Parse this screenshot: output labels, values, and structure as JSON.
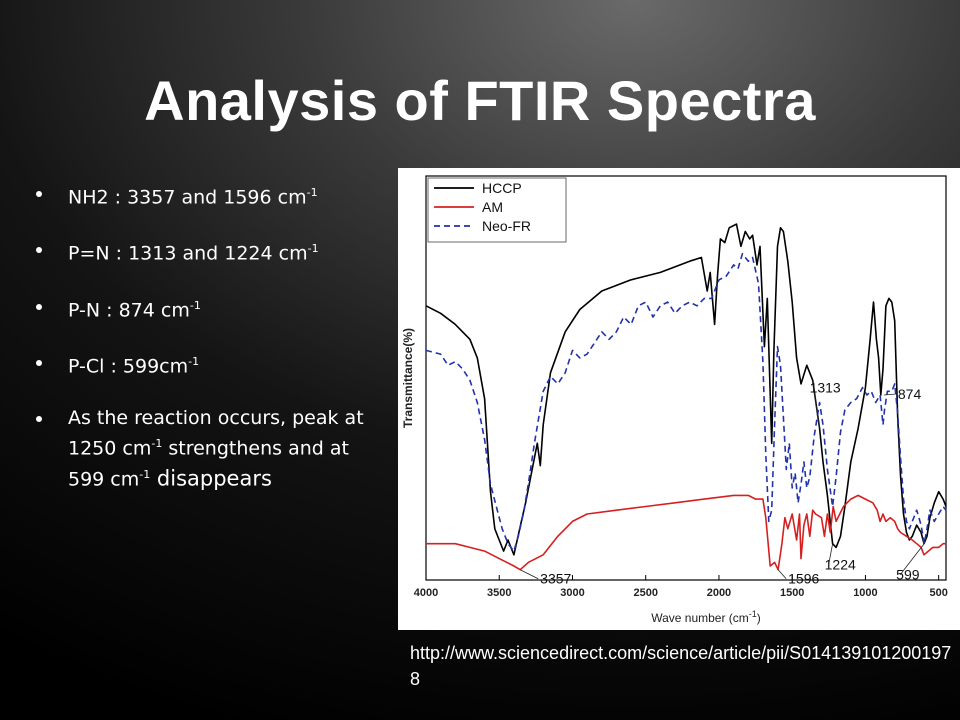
{
  "slide": {
    "title": "Analysis of FTIR Spectra",
    "bullets": [
      {
        "pre": "NH2 : 3357 and 1596 cm",
        "sup": "-1",
        "post": ""
      },
      {
        "pre": "P=N : 1313 and 1224 cm",
        "sup": "-1",
        "post": ""
      },
      {
        "pre": "P-N : 874 cm",
        "sup": "-1",
        "post": ""
      },
      {
        "pre": "P-Cl : 599cm",
        "sup": "-1",
        "post": ""
      },
      {
        "pre": "As the reaction occurs, peak at 1250 cm",
        "sup": "-1",
        "post": " strengthens and at 599 cm",
        "sup2": "-1",
        "post2": " disappears"
      }
    ],
    "source": "http://www.sciencedirect.com/science/article/pii/S0141391012001978"
  },
  "chart_data": {
    "type": "line",
    "xlabel": "Wave number (cm",
    "xlabel_sup": "-1",
    "xlabel_end": ")",
    "ylabel": "Transmittance(%)",
    "xlim": [
      4000,
      450
    ],
    "x_reversed": true,
    "ylim": [
      0,
      100
    ],
    "x_ticks": [
      4000,
      3500,
      3000,
      2500,
      2000,
      1500,
      1000,
      500
    ],
    "legend_position": "top-left",
    "series": [
      {
        "name": "HCCP",
        "color": "#000000",
        "dash": "solid",
        "points": [
          [
            4000,
            70
          ],
          [
            3900,
            68
          ],
          [
            3800,
            65
          ],
          [
            3700,
            61
          ],
          [
            3650,
            56
          ],
          [
            3600,
            45
          ],
          [
            3560,
            20
          ],
          [
            3530,
            10
          ],
          [
            3500,
            7
          ],
          [
            3470,
            4
          ],
          [
            3440,
            7
          ],
          [
            3400,
            3
          ],
          [
            3360,
            10
          ],
          [
            3320,
            17
          ],
          [
            3270,
            27
          ],
          [
            3240,
            33
          ],
          [
            3220,
            27
          ],
          [
            3200,
            38
          ],
          [
            3150,
            52
          ],
          [
            3050,
            63
          ],
          [
            2950,
            69
          ],
          [
            2800,
            74
          ],
          [
            2600,
            77
          ],
          [
            2400,
            79
          ],
          [
            2200,
            82
          ],
          [
            2120,
            83
          ],
          [
            2080,
            74
          ],
          [
            2060,
            79
          ],
          [
            2030,
            65
          ],
          [
            2010,
            78
          ],
          [
            1990,
            88
          ],
          [
            1960,
            87
          ],
          [
            1930,
            91
          ],
          [
            1880,
            92
          ],
          [
            1850,
            86
          ],
          [
            1820,
            90
          ],
          [
            1790,
            88
          ],
          [
            1770,
            89
          ],
          [
            1740,
            81
          ],
          [
            1720,
            86
          ],
          [
            1690,
            59
          ],
          [
            1670,
            72
          ],
          [
            1640,
            33
          ],
          [
            1625,
            58
          ],
          [
            1600,
            86
          ],
          [
            1580,
            91
          ],
          [
            1560,
            90
          ],
          [
            1530,
            82
          ],
          [
            1500,
            71
          ],
          [
            1470,
            56
          ],
          [
            1440,
            49
          ],
          [
            1400,
            54
          ],
          [
            1360,
            50
          ],
          [
            1313,
            37
          ],
          [
            1290,
            28
          ],
          [
            1260,
            19
          ],
          [
            1224,
            6
          ],
          [
            1200,
            5
          ],
          [
            1170,
            8
          ],
          [
            1140,
            16
          ],
          [
            1100,
            28
          ],
          [
            1050,
            37
          ],
          [
            1000,
            48
          ],
          [
            970,
            60
          ],
          [
            945,
            71
          ],
          [
            925,
            61
          ],
          [
            910,
            56
          ],
          [
            895,
            46
          ],
          [
            880,
            53
          ],
          [
            860,
            70
          ],
          [
            840,
            72
          ],
          [
            820,
            71
          ],
          [
            800,
            66
          ],
          [
            780,
            40
          ],
          [
            760,
            24
          ],
          [
            740,
            14
          ],
          [
            720,
            9
          ],
          [
            700,
            7
          ],
          [
            680,
            8
          ],
          [
            650,
            11
          ],
          [
            620,
            9
          ],
          [
            600,
            6
          ],
          [
            580,
            8
          ],
          [
            560,
            13
          ],
          [
            530,
            17
          ],
          [
            500,
            20
          ],
          [
            470,
            18
          ],
          [
            450,
            16
          ]
        ]
      },
      {
        "name": "AM",
        "color": "#d62020",
        "dash": "solid",
        "points": [
          [
            4000,
            6
          ],
          [
            3900,
            6
          ],
          [
            3800,
            6
          ],
          [
            3700,
            5
          ],
          [
            3600,
            4
          ],
          [
            3500,
            2
          ],
          [
            3400,
            0
          ],
          [
            3357,
            -1
          ],
          [
            3300,
            1
          ],
          [
            3200,
            3
          ],
          [
            3100,
            8
          ],
          [
            3000,
            12
          ],
          [
            2900,
            14
          ],
          [
            2700,
            15
          ],
          [
            2500,
            16
          ],
          [
            2300,
            17
          ],
          [
            2100,
            18
          ],
          [
            1900,
            19
          ],
          [
            1800,
            19
          ],
          [
            1750,
            18
          ],
          [
            1700,
            18
          ],
          [
            1680,
            13
          ],
          [
            1650,
            0
          ],
          [
            1620,
            1
          ],
          [
            1596,
            -1
          ],
          [
            1570,
            6
          ],
          [
            1550,
            13
          ],
          [
            1530,
            10
          ],
          [
            1500,
            14
          ],
          [
            1470,
            7
          ],
          [
            1450,
            14
          ],
          [
            1440,
            2
          ],
          [
            1420,
            11
          ],
          [
            1400,
            14
          ],
          [
            1380,
            8
          ],
          [
            1360,
            15
          ],
          [
            1340,
            14
          ],
          [
            1300,
            13
          ],
          [
            1280,
            8
          ],
          [
            1260,
            14
          ],
          [
            1240,
            9
          ],
          [
            1220,
            16
          ],
          [
            1200,
            12
          ],
          [
            1150,
            16
          ],
          [
            1100,
            18
          ],
          [
            1050,
            19
          ],
          [
            1000,
            18
          ],
          [
            950,
            17
          ],
          [
            920,
            15
          ],
          [
            900,
            12
          ],
          [
            880,
            14
          ],
          [
            860,
            12
          ],
          [
            830,
            13
          ],
          [
            800,
            12
          ],
          [
            780,
            10
          ],
          [
            760,
            9
          ],
          [
            720,
            8
          ],
          [
            680,
            7
          ],
          [
            650,
            6
          ],
          [
            620,
            5
          ],
          [
            600,
            3
          ],
          [
            570,
            4
          ],
          [
            540,
            5
          ],
          [
            500,
            5
          ],
          [
            470,
            6
          ],
          [
            450,
            6
          ]
        ]
      },
      {
        "name": "Neo-FR",
        "color": "#2233aa",
        "dash": "dashed",
        "points": [
          [
            4000,
            58
          ],
          [
            3900,
            57
          ],
          [
            3850,
            54
          ],
          [
            3800,
            55
          ],
          [
            3750,
            53
          ],
          [
            3700,
            50
          ],
          [
            3650,
            44
          ],
          [
            3600,
            34
          ],
          [
            3560,
            22
          ],
          [
            3520,
            16
          ],
          [
            3480,
            10
          ],
          [
            3440,
            6
          ],
          [
            3400,
            4
          ],
          [
            3370,
            8
          ],
          [
            3330,
            15
          ],
          [
            3290,
            25
          ],
          [
            3260,
            33
          ],
          [
            3230,
            40
          ],
          [
            3200,
            47
          ],
          [
            3150,
            51
          ],
          [
            3100,
            49
          ],
          [
            3050,
            52
          ],
          [
            3000,
            58
          ],
          [
            2950,
            56
          ],
          [
            2900,
            57
          ],
          [
            2850,
            60
          ],
          [
            2800,
            63
          ],
          [
            2750,
            61
          ],
          [
            2700,
            63
          ],
          [
            2650,
            67
          ],
          [
            2600,
            65
          ],
          [
            2550,
            70
          ],
          [
            2500,
            71
          ],
          [
            2450,
            67
          ],
          [
            2400,
            70
          ],
          [
            2350,
            71
          ],
          [
            2300,
            68
          ],
          [
            2250,
            70
          ],
          [
            2200,
            71
          ],
          [
            2150,
            70
          ],
          [
            2100,
            72
          ],
          [
            2050,
            72
          ],
          [
            2000,
            77
          ],
          [
            1950,
            78
          ],
          [
            1900,
            81
          ],
          [
            1870,
            80
          ],
          [
            1840,
            84
          ],
          [
            1800,
            82
          ],
          [
            1770,
            83
          ],
          [
            1730,
            76
          ],
          [
            1700,
            55
          ],
          [
            1680,
            30
          ],
          [
            1660,
            12
          ],
          [
            1640,
            15
          ],
          [
            1620,
            38
          ],
          [
            1600,
            59
          ],
          [
            1580,
            54
          ],
          [
            1560,
            40
          ],
          [
            1540,
            26
          ],
          [
            1520,
            33
          ],
          [
            1500,
            21
          ],
          [
            1480,
            25
          ],
          [
            1460,
            17
          ],
          [
            1440,
            22
          ],
          [
            1420,
            28
          ],
          [
            1400,
            21
          ],
          [
            1380,
            24
          ],
          [
            1350,
            35
          ],
          [
            1313,
            44
          ],
          [
            1290,
            38
          ],
          [
            1260,
            26
          ],
          [
            1224,
            16
          ],
          [
            1200,
            24
          ],
          [
            1170,
            36
          ],
          [
            1140,
            42
          ],
          [
            1100,
            44
          ],
          [
            1060,
            45
          ],
          [
            1020,
            48
          ],
          [
            990,
            46
          ],
          [
            960,
            47
          ],
          [
            930,
            44
          ],
          [
            900,
            46
          ],
          [
            880,
            38
          ],
          [
            870,
            42
          ],
          [
            850,
            47
          ],
          [
            820,
            47
          ],
          [
            800,
            49
          ],
          [
            780,
            41
          ],
          [
            760,
            29
          ],
          [
            740,
            18
          ],
          [
            720,
            12
          ],
          [
            700,
            10
          ],
          [
            680,
            12
          ],
          [
            650,
            15
          ],
          [
            620,
            11
          ],
          [
            599,
            6
          ],
          [
            580,
            10
          ],
          [
            560,
            15
          ],
          [
            530,
            12
          ],
          [
            500,
            14
          ],
          [
            470,
            16
          ],
          [
            450,
            15
          ]
        ]
      }
    ],
    "annotations": [
      {
        "text": "3357",
        "x": 3357,
        "y": -1
      },
      {
        "text": "1596",
        "x": 1596,
        "y": -1
      },
      {
        "text": "1313",
        "x": 1313,
        "y": 37
      },
      {
        "text": "1224",
        "x": 1224,
        "y": 6
      },
      {
        "text": "874",
        "x": 874,
        "y": 46
      },
      {
        "text": "599",
        "x": 599,
        "y": 6
      }
    ]
  }
}
